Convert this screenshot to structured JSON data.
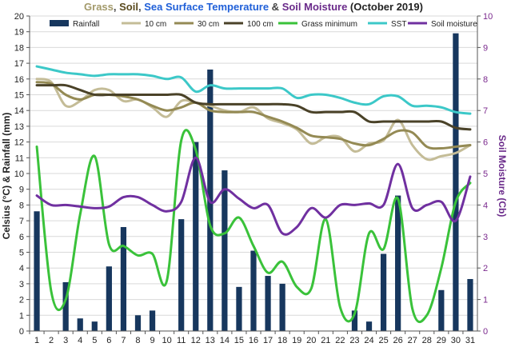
{
  "chart_data": {
    "type": "bar+line",
    "title": {
      "parts": [
        {
          "text": "Grass",
          "color": "#a39a6b"
        },
        {
          "text": ", ",
          "color": "#444444"
        },
        {
          "text": "Soil",
          "color": "#5a4a1e"
        },
        {
          "text": ", ",
          "color": "#444444"
        },
        {
          "text": "Sea Surface Temperature",
          "color": "#1f5fd8"
        },
        {
          "text": " & ",
          "color": "#444444"
        },
        {
          "text": "Soil Moisture",
          "color": "#6a2a8a"
        },
        {
          "text": " (October 2019)",
          "color": "#222222"
        }
      ]
    },
    "x_ticks": [
      1,
      2,
      3,
      4,
      5,
      6,
      7,
      8,
      9,
      10,
      11,
      12,
      13,
      14,
      15,
      16,
      17,
      18,
      19,
      20,
      21,
      22,
      23,
      24,
      25,
      26,
      27,
      28,
      29,
      30,
      31
    ],
    "ylabel_left": "Celsius (°C) & Rainfall (mm)",
    "ylabel_right": "Soil Moisture (Cb)",
    "ylim_left": [
      0,
      20
    ],
    "ylim_right": [
      0,
      10
    ],
    "y_ticks_left": [
      0,
      1,
      2,
      3,
      4,
      5,
      6,
      7,
      8,
      9,
      10,
      11,
      12,
      13,
      14,
      15,
      16,
      17,
      18,
      19,
      20
    ],
    "y_ticks_right": [
      0,
      1,
      2,
      3,
      4,
      5,
      6,
      7,
      8,
      9,
      10
    ],
    "legend_position": "top",
    "series": [
      {
        "name": "Rainfall",
        "kind": "bar",
        "axis": "left",
        "color": "#17375e",
        "values": [
          7.6,
          0,
          3.1,
          0.8,
          0.6,
          4.1,
          6.6,
          1.0,
          1.3,
          0,
          7.1,
          12.0,
          16.6,
          10.2,
          2.8,
          5.1,
          3.5,
          3.0,
          0,
          0,
          0,
          0,
          1.3,
          0.6,
          4.9,
          8.6,
          0,
          0,
          2.6,
          18.9,
          3.3
        ]
      },
      {
        "name": "10 cm",
        "kind": "line",
        "axis": "left",
        "color": "#c4bc97",
        "values": [
          16.0,
          15.8,
          14.3,
          14.6,
          15.3,
          15.3,
          14.6,
          14.7,
          14.2,
          13.6,
          14.6,
          14.5,
          14.3,
          14.0,
          13.9,
          14.2,
          13.5,
          13.2,
          12.8,
          11.9,
          12.3,
          12.3,
          11.4,
          11.9,
          12.1,
          13.4,
          11.8,
          10.9,
          11.1,
          11.3,
          11.8
        ]
      },
      {
        "name": "30 cm",
        "kind": "line",
        "axis": "left",
        "color": "#948a54",
        "values": [
          15.8,
          15.7,
          15.0,
          14.7,
          15.0,
          15.0,
          14.9,
          14.7,
          14.3,
          14.0,
          14.2,
          14.5,
          14.0,
          13.9,
          13.9,
          13.9,
          13.6,
          13.3,
          12.9,
          12.4,
          12.3,
          12.2,
          11.9,
          11.8,
          12.2,
          12.7,
          12.6,
          11.7,
          11.6,
          11.7,
          11.8
        ]
      },
      {
        "name": "100 cm",
        "kind": "line",
        "axis": "left",
        "color": "#4a4228",
        "values": [
          15.6,
          15.6,
          15.6,
          15.3,
          15.0,
          15.0,
          15.0,
          15.0,
          15.0,
          15.0,
          15.0,
          14.5,
          14.4,
          14.4,
          14.4,
          14.4,
          14.4,
          14.4,
          14.3,
          13.9,
          13.9,
          13.9,
          13.9,
          13.3,
          13.3,
          13.3,
          13.3,
          13.3,
          13.3,
          12.9,
          12.8
        ]
      },
      {
        "name": "Grass minimum",
        "kind": "line",
        "axis": "left",
        "color": "#3ac23a",
        "values": [
          11.7,
          2.5,
          2.0,
          7.4,
          11.1,
          5.5,
          5.4,
          4.8,
          4.9,
          3.2,
          12.1,
          11.5,
          6.7,
          6.2,
          7.2,
          5.4,
          3.7,
          4.4,
          2.8,
          2.7,
          7.1,
          1.5,
          1.1,
          6.2,
          5.2,
          8.4,
          1.4,
          1.0,
          4.0,
          8.2,
          9.4
        ]
      },
      {
        "name": "SST",
        "kind": "line",
        "axis": "left",
        "color": "#3cc8c8",
        "values": [
          16.8,
          16.6,
          16.4,
          16.3,
          16.2,
          16.3,
          16.3,
          16.3,
          16.2,
          16.0,
          16.1,
          15.2,
          15.6,
          15.4,
          15.4,
          15.4,
          15.4,
          15.4,
          14.8,
          15.0,
          15.0,
          14.8,
          14.5,
          14.4,
          14.9,
          14.9,
          14.3,
          14.3,
          14.2,
          13.9,
          13.8
        ]
      },
      {
        "name": "Soil moisture",
        "kind": "line",
        "axis": "right",
        "color": "#7030a0",
        "values": [
          4.3,
          4.0,
          4.0,
          3.95,
          3.9,
          3.95,
          4.25,
          4.25,
          4.0,
          3.8,
          4.1,
          5.5,
          4.1,
          4.5,
          4.2,
          3.9,
          4.0,
          3.1,
          3.3,
          3.9,
          3.6,
          4.0,
          4.0,
          4.05,
          4.0,
          5.3,
          3.9,
          4.0,
          4.1,
          3.5,
          4.9
        ]
      }
    ]
  }
}
